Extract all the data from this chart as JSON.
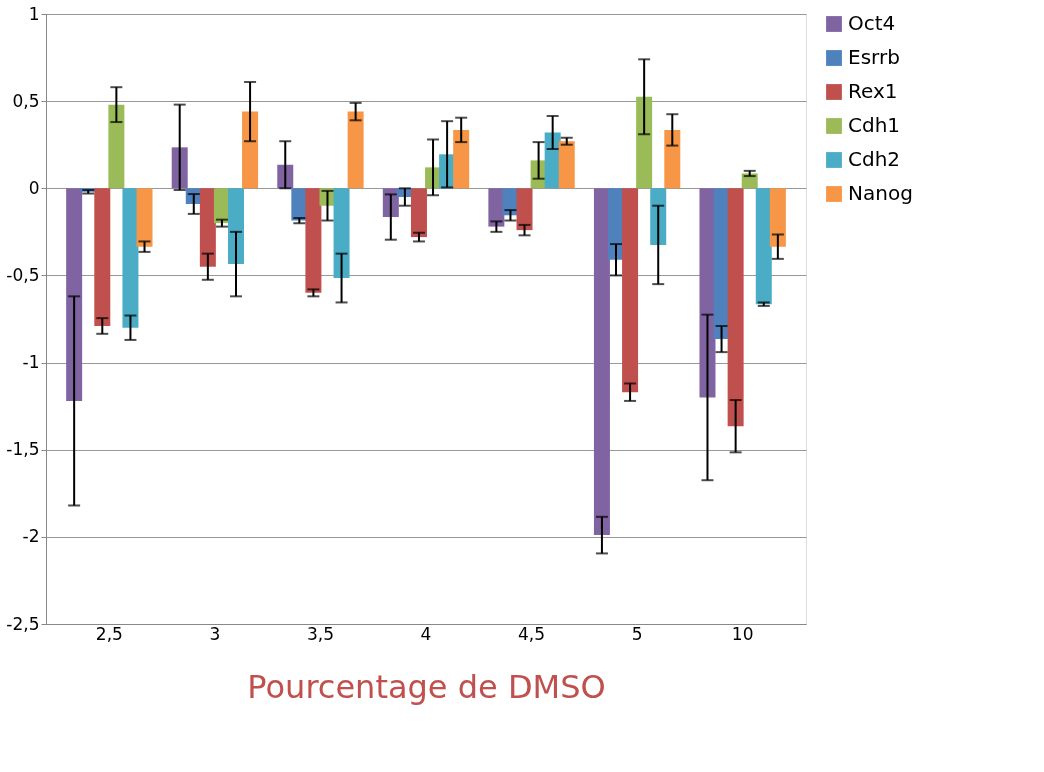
{
  "chart_data": {
    "type": "bar",
    "xlabel": "Pourcentage de DMSO",
    "categories": [
      "2,5",
      "3",
      "3,5",
      "4",
      "4,5",
      "5",
      "10"
    ],
    "series": [
      {
        "name": "Oct4",
        "color": "#8064a2",
        "values": [
          -1.22,
          0.235,
          0.135,
          -0.165,
          -0.22,
          -1.99,
          -1.2
        ],
        "errors": [
          0.6,
          0.245,
          0.135,
          0.13,
          0.03,
          0.105,
          0.475
        ]
      },
      {
        "name": "Esrrb",
        "color": "#4f81bd",
        "values": [
          -0.02,
          -0.09,
          -0.185,
          -0.05,
          -0.155,
          -0.41,
          -0.865
        ],
        "errors": [
          0.01,
          0.057,
          0.015,
          0.05,
          0.03,
          0.09,
          0.075
        ]
      },
      {
        "name": "Rex1",
        "color": "#c0504d",
        "values": [
          -0.79,
          -0.45,
          -0.6,
          -0.28,
          -0.24,
          -1.17,
          -1.365
        ],
        "errors": [
          0.045,
          0.075,
          0.02,
          0.025,
          0.03,
          0.05,
          0.15
        ]
      },
      {
        "name": "Cdh1",
        "color": "#9bbb59",
        "values": [
          0.48,
          -0.2,
          -0.1,
          0.12,
          0.16,
          0.525,
          0.085
        ],
        "errors": [
          0.1,
          0.02,
          0.085,
          0.16,
          0.105,
          0.215,
          0.015
        ]
      },
      {
        "name": "Cdh2",
        "color": "#4bacc6",
        "values": [
          -0.8,
          -0.435,
          -0.515,
          0.195,
          0.32,
          -0.325,
          -0.665
        ],
        "errors": [
          0.07,
          0.185,
          0.14,
          0.19,
          0.095,
          0.225,
          0.01
        ]
      },
      {
        "name": "Nanog",
        "color": "#f79646",
        "values": [
          -0.335,
          0.44,
          0.44,
          0.335,
          0.27,
          0.335,
          -0.335
        ],
        "errors": [
          0.03,
          0.17,
          0.05,
          0.07,
          0.02,
          0.09,
          0.07
        ]
      }
    ],
    "ylim": [
      -2.5,
      1
    ],
    "yticks": [
      {
        "value": -2.5,
        "label": "-2,5"
      },
      -2,
      {
        "value": -1.5,
        "label": "-1,5"
      },
      -1,
      {
        "value": -0.5,
        "label": "-0,5"
      },
      0,
      {
        "value": 0.5,
        "label": "0,5"
      },
      1
    ],
    "grid": "y",
    "legend": "right"
  }
}
